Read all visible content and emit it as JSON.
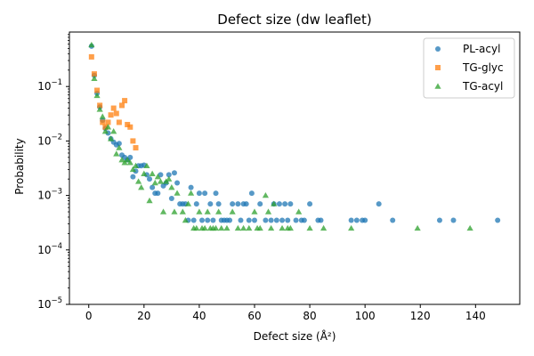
{
  "chart_data": {
    "type": "scatter",
    "title": "Defect size (dw leaflet)",
    "xlabel": "Defect size (Å²)",
    "ylabel": "Probability",
    "xlim": [
      -7,
      156
    ],
    "ylim": [
      1e-05,
      1
    ],
    "yscale": "log",
    "x_ticks": [
      0,
      20,
      40,
      60,
      80,
      100,
      120,
      140
    ],
    "x_tick_labels": [
      "0",
      "20",
      "40",
      "60",
      "80",
      "100",
      "120",
      "140"
    ],
    "y_ticks": [
      1e-05,
      0.0001,
      0.001,
      0.01,
      0.1
    ],
    "y_tick_labels": [
      {
        "base": "10",
        "exp": "−5"
      },
      {
        "base": "10",
        "exp": "−4"
      },
      {
        "base": "10",
        "exp": "−3"
      },
      {
        "base": "10",
        "exp": "−2"
      },
      {
        "base": "10",
        "exp": "−1"
      }
    ],
    "grid": false,
    "legend_position": "top-right",
    "series": [
      {
        "name": "PL-acyl",
        "marker": "circle",
        "color": "#1f77b4",
        "points": [
          [
            1,
            0.55
          ],
          [
            2,
            0.16
          ],
          [
            3,
            0.075
          ],
          [
            4,
            0.042
          ],
          [
            5,
            0.024
          ],
          [
            6,
            0.017
          ],
          [
            7,
            0.014
          ],
          [
            8,
            0.011
          ],
          [
            9,
            0.0095
          ],
          [
            10,
            0.0085
          ],
          [
            11,
            0.009
          ],
          [
            12,
            0.0055
          ],
          [
            13,
            0.005
          ],
          [
            14,
            0.0045
          ],
          [
            15,
            0.005
          ],
          [
            16,
            0.0022
          ],
          [
            17,
            0.0028
          ],
          [
            18,
            0.0035
          ],
          [
            19,
            0.0035
          ],
          [
            20,
            0.0036
          ],
          [
            21,
            0.0024
          ],
          [
            22,
            0.002
          ],
          [
            23,
            0.0014
          ],
          [
            24,
            0.0011
          ],
          [
            25,
            0.0011
          ],
          [
            26,
            0.0024
          ],
          [
            27,
            0.0015
          ],
          [
            28,
            0.0017
          ],
          [
            29,
            0.0024
          ],
          [
            30,
            0.00088
          ],
          [
            31,
            0.0026
          ],
          [
            32,
            0.0017
          ],
          [
            33,
            0.0007
          ],
          [
            34,
            0.0007
          ],
          [
            35,
            0.0007
          ],
          [
            36,
            0.00035
          ],
          [
            37,
            0.0014
          ],
          [
            38,
            0.00035
          ],
          [
            39,
            0.0007
          ],
          [
            40,
            0.0011
          ],
          [
            41,
            0.00035
          ],
          [
            42,
            0.0011
          ],
          [
            43,
            0.00035
          ],
          [
            44,
            0.0007
          ],
          [
            45,
            0.00035
          ],
          [
            46,
            0.0011
          ],
          [
            47,
            0.0007
          ],
          [
            48,
            0.00035
          ],
          [
            49,
            0.00035
          ],
          [
            50,
            0.00035
          ],
          [
            51,
            0.00035
          ],
          [
            52,
            0.0007
          ],
          [
            54,
            0.0007
          ],
          [
            55,
            0.00035
          ],
          [
            56,
            0.0007
          ],
          [
            57,
            0.0007
          ],
          [
            58,
            0.00035
          ],
          [
            59,
            0.0011
          ],
          [
            60,
            0.00035
          ],
          [
            62,
            0.0007
          ],
          [
            64,
            0.00035
          ],
          [
            66,
            0.00035
          ],
          [
            67,
            0.0007
          ],
          [
            68,
            0.00035
          ],
          [
            69,
            0.0007
          ],
          [
            70,
            0.00035
          ],
          [
            71,
            0.0007
          ],
          [
            72,
            0.00035
          ],
          [
            73,
            0.0007
          ],
          [
            75,
            0.00035
          ],
          [
            77,
            0.00035
          ],
          [
            78,
            0.00035
          ],
          [
            80,
            0.0007
          ],
          [
            83,
            0.00035
          ],
          [
            84,
            0.00035
          ],
          [
            95,
            0.00035
          ],
          [
            97,
            0.00035
          ],
          [
            99,
            0.00035
          ],
          [
            100,
            0.00035
          ],
          [
            105,
            0.0007
          ],
          [
            110,
            0.00035
          ],
          [
            127,
            0.00035
          ],
          [
            132,
            0.00035
          ],
          [
            148,
            0.00035
          ]
        ]
      },
      {
        "name": "TG-glyc",
        "marker": "square",
        "color": "#ff7f0e",
        "points": [
          [
            1,
            0.35
          ],
          [
            2,
            0.17
          ],
          [
            3,
            0.085
          ],
          [
            4,
            0.045
          ],
          [
            5,
            0.022
          ],
          [
            6,
            0.018
          ],
          [
            7,
            0.022
          ],
          [
            8,
            0.03
          ],
          [
            9,
            0.04
          ],
          [
            10,
            0.032
          ],
          [
            11,
            0.022
          ],
          [
            12,
            0.045
          ],
          [
            13,
            0.055
          ],
          [
            14,
            0.02
          ],
          [
            15,
            0.018
          ],
          [
            16,
            0.01
          ],
          [
            17,
            0.0075
          ]
        ]
      },
      {
        "name": "TG-acyl",
        "marker": "triangle",
        "color": "#2ca02c",
        "points": [
          [
            1,
            0.58
          ],
          [
            2,
            0.14
          ],
          [
            3,
            0.068
          ],
          [
            4,
            0.038
          ],
          [
            5,
            0.028
          ],
          [
            6,
            0.015
          ],
          [
            7,
            0.018
          ],
          [
            8,
            0.011
          ],
          [
            9,
            0.015
          ],
          [
            10,
            0.0058
          ],
          [
            11,
            0.0075
          ],
          [
            12,
            0.0045
          ],
          [
            13,
            0.004
          ],
          [
            14,
            0.0045
          ],
          [
            15,
            0.004
          ],
          [
            16,
            0.003
          ],
          [
            17,
            0.0035
          ],
          [
            18,
            0.0018
          ],
          [
            19,
            0.0014
          ],
          [
            20,
            0.0025
          ],
          [
            21,
            0.0035
          ],
          [
            22,
            0.0008
          ],
          [
            23,
            0.0025
          ],
          [
            24,
            0.0017
          ],
          [
            25,
            0.0022
          ],
          [
            26,
            0.0018
          ],
          [
            27,
            0.0005
          ],
          [
            28,
            0.0018
          ],
          [
            29,
            0.002
          ],
          [
            30,
            0.0014
          ],
          [
            31,
            0.0005
          ],
          [
            32,
            0.0011
          ],
          [
            34,
            0.0005
          ],
          [
            35,
            0.00035
          ],
          [
            36,
            0.0007
          ],
          [
            37,
            0.0011
          ],
          [
            38,
            0.00025
          ],
          [
            39,
            0.00025
          ],
          [
            40,
            0.0005
          ],
          [
            41,
            0.00025
          ],
          [
            42,
            0.00025
          ],
          [
            43,
            0.0005
          ],
          [
            44,
            0.00025
          ],
          [
            45,
            0.00025
          ],
          [
            46,
            0.00025
          ],
          [
            47,
            0.0005
          ],
          [
            48,
            0.00025
          ],
          [
            50,
            0.00025
          ],
          [
            52,
            0.0005
          ],
          [
            54,
            0.00025
          ],
          [
            56,
            0.00025
          ],
          [
            58,
            0.00025
          ],
          [
            60,
            0.0005
          ],
          [
            61,
            0.00025
          ],
          [
            62,
            0.00025
          ],
          [
            64,
            0.001
          ],
          [
            65,
            0.0005
          ],
          [
            66,
            0.00025
          ],
          [
            67,
            0.0007
          ],
          [
            70,
            0.00025
          ],
          [
            72,
            0.00025
          ],
          [
            73,
            0.00025
          ],
          [
            76,
            0.0005
          ],
          [
            80,
            0.00025
          ],
          [
            85,
            0.00025
          ],
          [
            95,
            0.00025
          ],
          [
            119,
            0.00025
          ],
          [
            138,
            0.00025
          ]
        ]
      }
    ]
  }
}
